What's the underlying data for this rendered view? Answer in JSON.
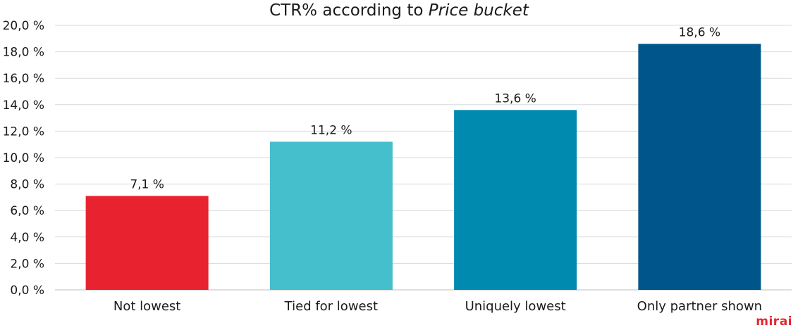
{
  "chart_data": {
    "type": "bar",
    "title_plain": "CTR% according to ",
    "title_italic": "Price bucket",
    "categories": [
      "Not lowest",
      "Tied for lowest",
      "Uniquely lowest",
      "Only partner shown"
    ],
    "values": [
      7.1,
      11.2,
      13.6,
      18.6
    ],
    "data_labels": [
      "7,1 %",
      "11,2 %",
      "13,6 %",
      "18,6 %"
    ],
    "colors": [
      "#e8232f",
      "#45bfcb",
      "#008ab0",
      "#00558a"
    ],
    "ylim": [
      0,
      20
    ],
    "yticks": [
      "0,0 %",
      "2,0 %",
      "4,0 %",
      "6,0 %",
      "8,0 %",
      "10,0 %",
      "12,0 %",
      "14,0 %",
      "16,0 %",
      "18,0 %",
      "20,0 %"
    ],
    "grid": true,
    "grid_color": "#d9d9d9"
  },
  "brand": {
    "text": "mirai",
    "color": "#e8232f"
  }
}
